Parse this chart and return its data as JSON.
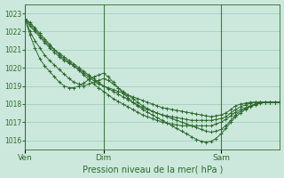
{
  "title": "",
  "xlabel": "Pression niveau de la mer( hPa )",
  "ylabel": "",
  "bg_color": "#cce8dc",
  "grid_color": "#99ccb3",
  "line_color": "#2d6a2d",
  "marker_color": "#2d6a2d",
  "ylim": [
    1015.5,
    1023.5
  ],
  "xtick_labels": [
    "Ven",
    "Dim",
    "Sam"
  ],
  "xtick_positions": [
    0,
    16,
    40
  ],
  "ytick_values": [
    1016,
    1017,
    1018,
    1019,
    1020,
    1021,
    1022,
    1023
  ],
  "total_points": 53,
  "series": [
    [
      1022.7,
      1022.5,
      1022.2,
      1021.9,
      1021.6,
      1021.3,
      1021.0,
      1020.7,
      1020.5,
      1020.3,
      1020.1,
      1019.9,
      1019.7,
      1019.5,
      1019.3,
      1019.1,
      1019.0,
      1018.9,
      1018.8,
      1018.7,
      1018.6,
      1018.5,
      1018.4,
      1018.3,
      1018.2,
      1018.1,
      1018.0,
      1017.9,
      1017.8,
      1017.75,
      1017.7,
      1017.65,
      1017.6,
      1017.55,
      1017.5,
      1017.45,
      1017.4,
      1017.35,
      1017.3,
      1017.35,
      1017.4,
      1017.5,
      1017.7,
      1017.9,
      1018.0,
      1018.05,
      1018.1,
      1018.1,
      1018.1,
      1018.1,
      1018.1,
      1018.1,
      1018.1
    ],
    [
      1022.7,
      1022.4,
      1022.1,
      1021.8,
      1021.5,
      1021.2,
      1021.0,
      1020.8,
      1020.6,
      1020.4,
      1020.2,
      1020.0,
      1019.8,
      1019.6,
      1019.4,
      1019.2,
      1019.0,
      1018.85,
      1018.7,
      1018.55,
      1018.4,
      1018.25,
      1018.1,
      1017.95,
      1017.8,
      1017.7,
      1017.6,
      1017.5,
      1017.4,
      1017.35,
      1017.3,
      1017.25,
      1017.2,
      1017.15,
      1017.1,
      1017.1,
      1017.1,
      1017.1,
      1017.1,
      1017.15,
      1017.2,
      1017.3,
      1017.5,
      1017.7,
      1017.85,
      1017.95,
      1018.05,
      1018.1,
      1018.1,
      1018.1,
      1018.1,
      1018.1,
      1018.1
    ],
    [
      1022.7,
      1022.3,
      1022.0,
      1021.7,
      1021.4,
      1021.1,
      1020.85,
      1020.6,
      1020.4,
      1020.25,
      1020.1,
      1019.85,
      1019.6,
      1019.35,
      1019.1,
      1018.9,
      1018.7,
      1018.5,
      1018.3,
      1018.15,
      1018.0,
      1017.85,
      1017.7,
      1017.55,
      1017.4,
      1017.3,
      1017.2,
      1017.1,
      1017.0,
      1016.95,
      1016.9,
      1016.85,
      1016.8,
      1016.8,
      1016.8,
      1016.8,
      1016.8,
      1016.8,
      1016.8,
      1016.9,
      1017.0,
      1017.15,
      1017.35,
      1017.55,
      1017.7,
      1017.8,
      1017.9,
      1018.0,
      1018.1,
      1018.1,
      1018.1,
      1018.1,
      1018.1
    ],
    [
      1022.7,
      1022.0,
      1021.5,
      1021.1,
      1020.7,
      1020.4,
      1020.15,
      1019.9,
      1019.65,
      1019.4,
      1019.2,
      1019.1,
      1019.0,
      1019.1,
      1019.2,
      1019.3,
      1019.4,
      1019.3,
      1019.1,
      1018.9,
      1018.7,
      1018.5,
      1018.3,
      1018.1,
      1017.9,
      1017.75,
      1017.6,
      1017.5,
      1017.4,
      1017.3,
      1017.2,
      1017.1,
      1017.0,
      1016.9,
      1016.8,
      1016.7,
      1016.6,
      1016.5,
      1016.45,
      1016.5,
      1016.6,
      1016.8,
      1017.1,
      1017.4,
      1017.6,
      1017.75,
      1017.9,
      1018.0,
      1018.1,
      1018.1,
      1018.1,
      1018.1,
      1018.1
    ],
    [
      1022.7,
      1021.8,
      1021.1,
      1020.5,
      1020.1,
      1019.8,
      1019.5,
      1019.2,
      1019.0,
      1018.9,
      1018.9,
      1019.0,
      1019.15,
      1019.35,
      1019.5,
      1019.6,
      1019.7,
      1019.5,
      1019.2,
      1018.9,
      1018.6,
      1018.35,
      1018.1,
      1017.9,
      1017.7,
      1017.55,
      1017.4,
      1017.25,
      1017.1,
      1016.95,
      1016.8,
      1016.65,
      1016.5,
      1016.35,
      1016.2,
      1016.05,
      1015.95,
      1015.9,
      1015.95,
      1016.1,
      1016.35,
      1016.65,
      1017.0,
      1017.3,
      1017.5,
      1017.7,
      1017.85,
      1017.95,
      1018.05,
      1018.1,
      1018.1,
      1018.1,
      1018.1
    ]
  ]
}
